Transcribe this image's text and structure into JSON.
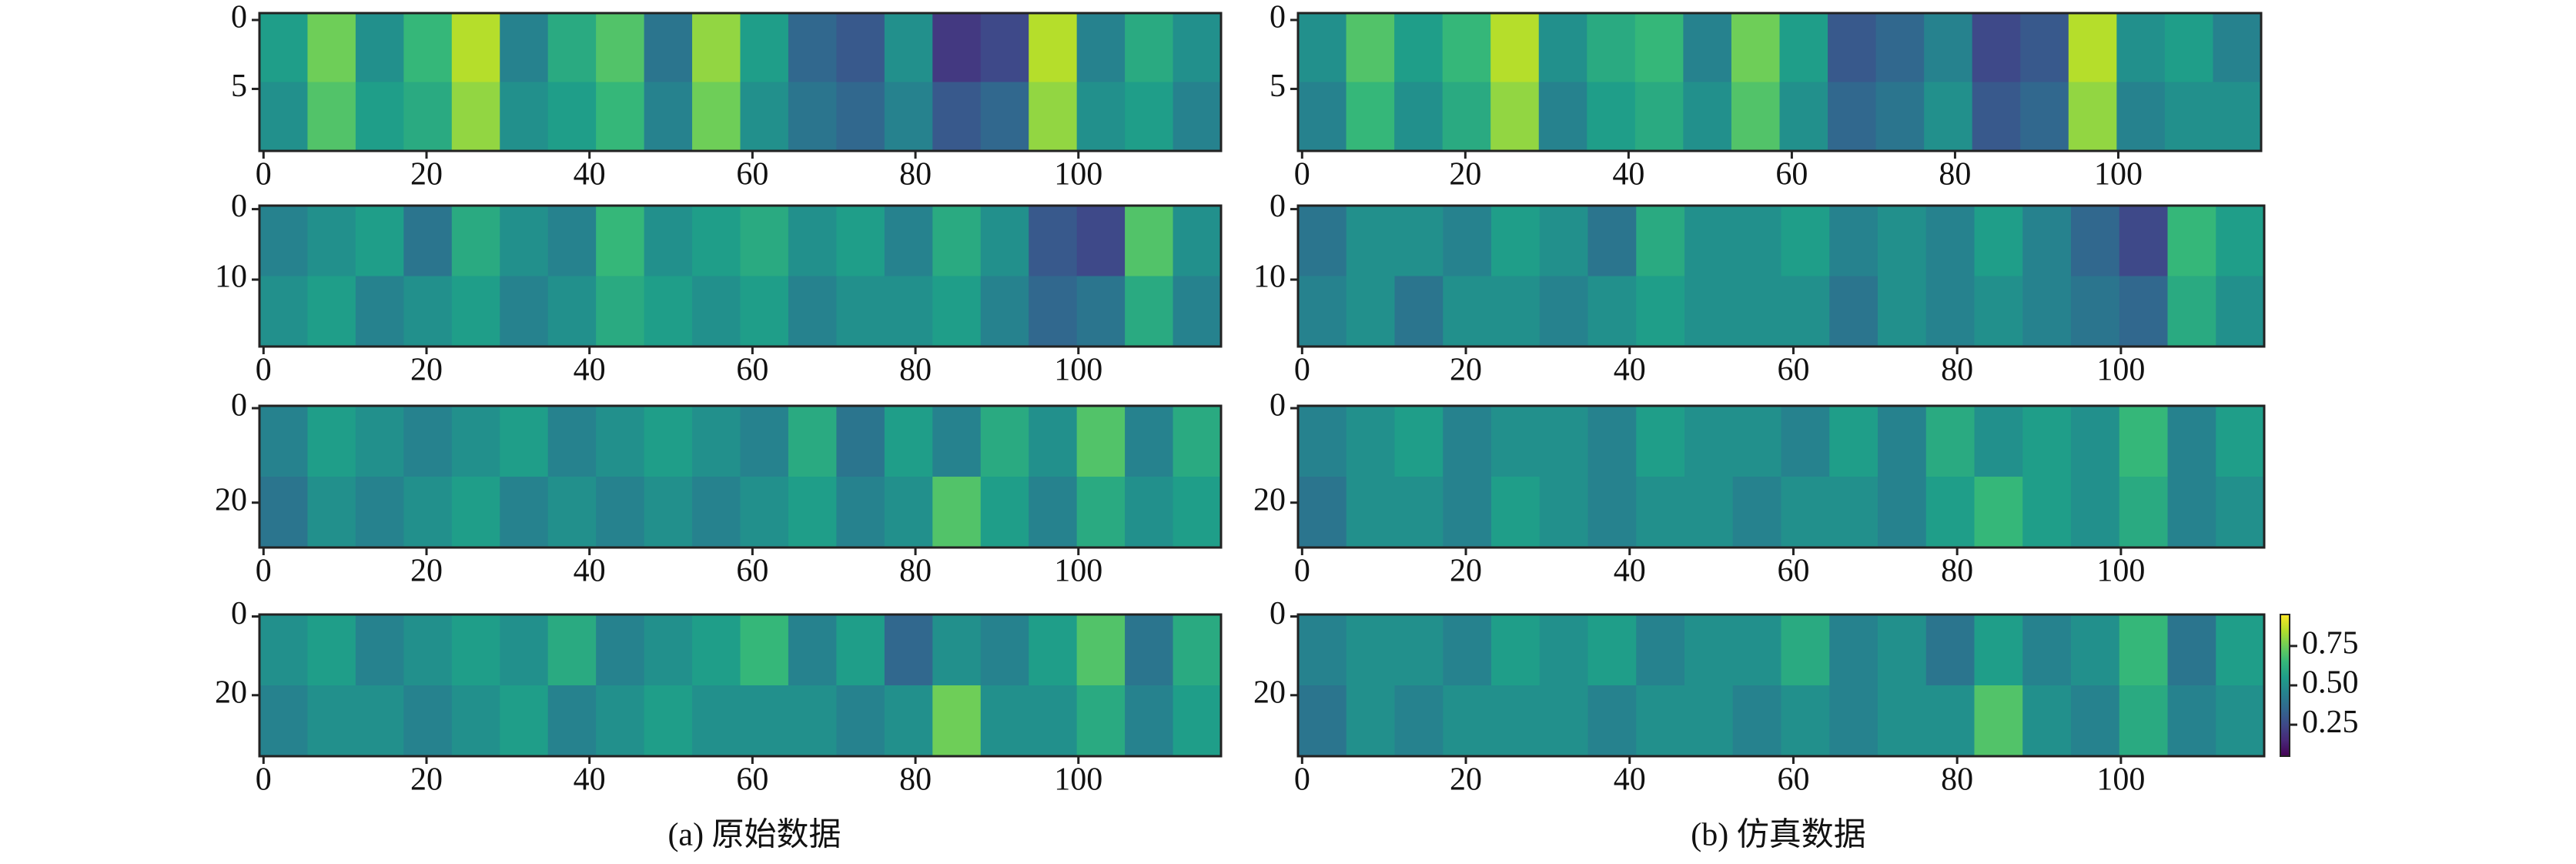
{
  "chart_data": [
    {
      "type": "heatmap",
      "colormap": "viridis",
      "xlim": [
        -0.5,
        117.5
      ],
      "ylim": [
        -0.5,
        9.5
      ],
      "xticks": [
        0,
        20,
        40,
        60,
        80,
        100
      ],
      "yticks": [
        0,
        5
      ],
      "values": [
        [
          0.55,
          0.75,
          0.5,
          0.65,
          0.85,
          0.45,
          0.6,
          0.7,
          0.4,
          0.8,
          0.55,
          0.35,
          0.3,
          0.5,
          0.2,
          0.25,
          0.85,
          0.45,
          0.6,
          0.5
        ],
        [
          0.5,
          0.7,
          0.55,
          0.6,
          0.8,
          0.5,
          0.55,
          0.65,
          0.45,
          0.75,
          0.5,
          0.4,
          0.35,
          0.45,
          0.3,
          0.35,
          0.8,
          0.5,
          0.55,
          0.45
        ]
      ]
    },
    {
      "type": "heatmap",
      "colormap": "viridis",
      "xlim": [
        -0.5,
        117.5
      ],
      "ylim": [
        -0.5,
        9.5
      ],
      "xticks": [
        0,
        20,
        40,
        60,
        80,
        100
      ],
      "yticks": [
        0,
        5
      ],
      "values": [
        [
          0.5,
          0.7,
          0.55,
          0.65,
          0.85,
          0.5,
          0.6,
          0.65,
          0.45,
          0.75,
          0.55,
          0.3,
          0.35,
          0.45,
          0.25,
          0.3,
          0.85,
          0.5,
          0.55,
          0.45
        ],
        [
          0.45,
          0.65,
          0.5,
          0.6,
          0.8,
          0.45,
          0.55,
          0.6,
          0.5,
          0.7,
          0.5,
          0.35,
          0.4,
          0.5,
          0.3,
          0.35,
          0.8,
          0.45,
          0.5,
          0.5
        ]
      ]
    },
    {
      "type": "heatmap",
      "colormap": "viridis",
      "xlim": [
        -0.5,
        117.5
      ],
      "ylim": [
        -0.5,
        19.5
      ],
      "xticks": [
        0,
        20,
        40,
        60,
        80,
        100
      ],
      "yticks": [
        0,
        10
      ],
      "values": [
        [
          0.45,
          0.5,
          0.55,
          0.4,
          0.6,
          0.5,
          0.45,
          0.65,
          0.5,
          0.55,
          0.6,
          0.5,
          0.55,
          0.45,
          0.6,
          0.5,
          0.3,
          0.25,
          0.7,
          0.5
        ],
        [
          0.5,
          0.55,
          0.45,
          0.5,
          0.55,
          0.45,
          0.5,
          0.6,
          0.55,
          0.5,
          0.55,
          0.45,
          0.5,
          0.5,
          0.55,
          0.45,
          0.35,
          0.4,
          0.6,
          0.45
        ]
      ]
    },
    {
      "type": "heatmap",
      "colormap": "viridis",
      "xlim": [
        -0.5,
        117.5
      ],
      "ylim": [
        -0.5,
        19.5
      ],
      "xticks": [
        0,
        20,
        40,
        60,
        80,
        100
      ],
      "yticks": [
        0,
        10
      ],
      "values": [
        [
          0.4,
          0.5,
          0.5,
          0.45,
          0.55,
          0.5,
          0.4,
          0.6,
          0.5,
          0.5,
          0.55,
          0.45,
          0.5,
          0.45,
          0.55,
          0.45,
          0.35,
          0.25,
          0.65,
          0.55
        ],
        [
          0.45,
          0.5,
          0.4,
          0.5,
          0.5,
          0.45,
          0.5,
          0.55,
          0.5,
          0.5,
          0.5,
          0.4,
          0.5,
          0.45,
          0.5,
          0.45,
          0.4,
          0.35,
          0.6,
          0.5
        ]
      ]
    },
    {
      "type": "heatmap",
      "colormap": "viridis",
      "xlim": [
        -0.5,
        117.5
      ],
      "ylim": [
        -0.5,
        29.5
      ],
      "xticks": [
        0,
        20,
        40,
        60,
        80,
        100
      ],
      "yticks": [
        0,
        20
      ],
      "values": [
        [
          0.45,
          0.55,
          0.5,
          0.45,
          0.5,
          0.55,
          0.45,
          0.5,
          0.55,
          0.5,
          0.45,
          0.6,
          0.4,
          0.55,
          0.45,
          0.6,
          0.5,
          0.7,
          0.45,
          0.6
        ],
        [
          0.4,
          0.5,
          0.45,
          0.5,
          0.55,
          0.45,
          0.5,
          0.45,
          0.5,
          0.45,
          0.5,
          0.55,
          0.45,
          0.5,
          0.7,
          0.55,
          0.45,
          0.6,
          0.5,
          0.55
        ]
      ]
    },
    {
      "type": "heatmap",
      "colormap": "viridis",
      "xlim": [
        -0.5,
        117.5
      ],
      "ylim": [
        -0.5,
        29.5
      ],
      "xticks": [
        0,
        20,
        40,
        60,
        80,
        100
      ],
      "yticks": [
        0,
        20
      ],
      "values": [
        [
          0.45,
          0.5,
          0.55,
          0.45,
          0.5,
          0.5,
          0.45,
          0.55,
          0.5,
          0.5,
          0.45,
          0.55,
          0.45,
          0.6,
          0.5,
          0.55,
          0.5,
          0.65,
          0.45,
          0.55
        ],
        [
          0.4,
          0.5,
          0.5,
          0.45,
          0.55,
          0.5,
          0.45,
          0.5,
          0.5,
          0.45,
          0.5,
          0.5,
          0.45,
          0.55,
          0.65,
          0.55,
          0.5,
          0.6,
          0.45,
          0.5
        ]
      ]
    },
    {
      "type": "heatmap",
      "colormap": "viridis",
      "xlim": [
        -0.5,
        117.5
      ],
      "ylim": [
        -0.5,
        35.5
      ],
      "xticks": [
        0,
        20,
        40,
        60,
        80,
        100
      ],
      "yticks": [
        0,
        20
      ],
      "values": [
        [
          0.5,
          0.55,
          0.45,
          0.5,
          0.55,
          0.5,
          0.6,
          0.45,
          0.5,
          0.55,
          0.65,
          0.45,
          0.55,
          0.35,
          0.5,
          0.45,
          0.55,
          0.7,
          0.4,
          0.6
        ],
        [
          0.45,
          0.5,
          0.5,
          0.45,
          0.5,
          0.55,
          0.45,
          0.5,
          0.55,
          0.5,
          0.5,
          0.5,
          0.45,
          0.5,
          0.75,
          0.5,
          0.5,
          0.6,
          0.45,
          0.55
        ]
      ]
    },
    {
      "type": "heatmap",
      "colormap": "viridis",
      "xlim": [
        -0.5,
        117.5
      ],
      "ylim": [
        -0.5,
        35.5
      ],
      "xticks": [
        0,
        20,
        40,
        60,
        80,
        100
      ],
      "yticks": [
        0,
        20
      ],
      "values": [
        [
          0.45,
          0.5,
          0.5,
          0.45,
          0.55,
          0.5,
          0.55,
          0.45,
          0.5,
          0.5,
          0.6,
          0.45,
          0.5,
          0.4,
          0.55,
          0.45,
          0.5,
          0.65,
          0.4,
          0.55
        ],
        [
          0.4,
          0.5,
          0.45,
          0.5,
          0.5,
          0.5,
          0.45,
          0.5,
          0.5,
          0.45,
          0.5,
          0.45,
          0.5,
          0.5,
          0.7,
          0.5,
          0.45,
          0.6,
          0.45,
          0.5
        ]
      ]
    },
    {
      "type": "colorbar",
      "colormap": "viridis",
      "lim": [
        0.05,
        0.95
      ],
      "ticks": [
        {
          "value": 0.75,
          "label": "0.75"
        },
        {
          "value": 0.5,
          "label": "0.50"
        },
        {
          "value": 0.25,
          "label": "0.25"
        }
      ]
    }
  ],
  "captions": [
    "(a) 原始数据",
    "(b) 仿真数据"
  ]
}
